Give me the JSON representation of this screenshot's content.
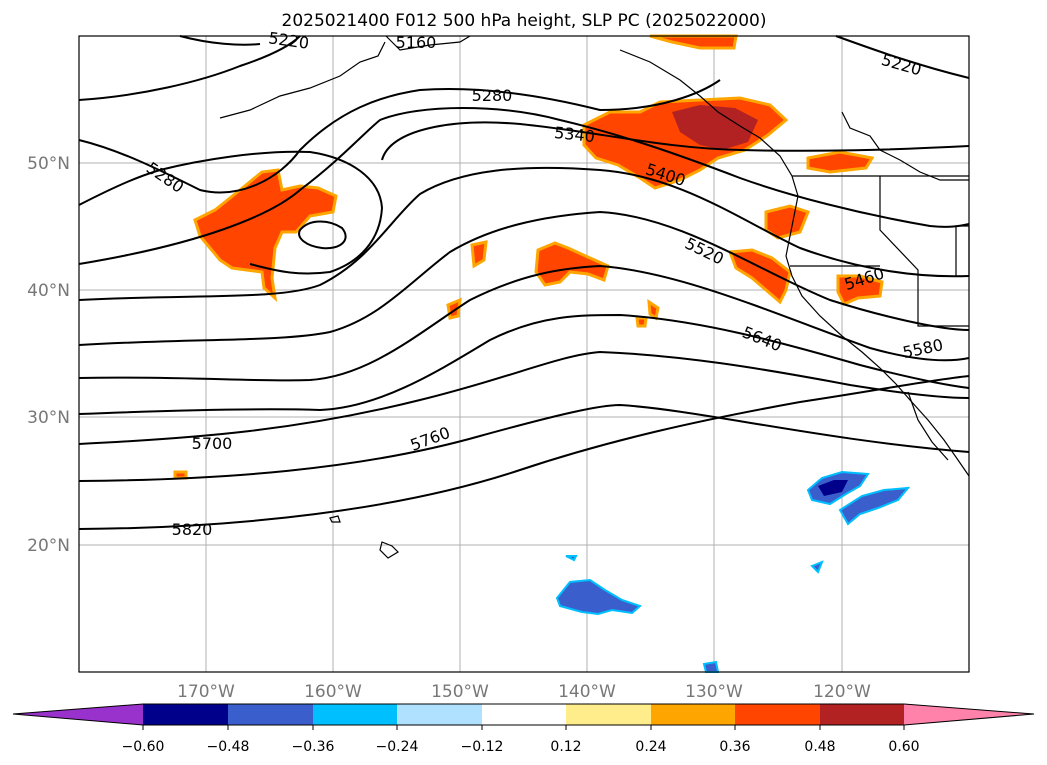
{
  "title": "2025021400 F012 500 hPa height, SLP PC (2025022000)",
  "lat_labels": [
    "50°N",
    "40°N",
    "30°N",
    "20°N"
  ],
  "lon_labels": [
    "170°W",
    "160°W",
    "150°W",
    "140°W",
    "130°W",
    "120°W"
  ],
  "contour_labels": [
    "5220",
    "5160",
    "5220",
    "5280",
    "5280",
    "5340",
    "5400",
    "5520",
    "5460",
    "5640",
    "5580",
    "5700",
    "5760",
    "5820"
  ],
  "colorbar": {
    "ticks": [
      "−0.60",
      "−0.48",
      "−0.36",
      "−0.24",
      "−0.12",
      "0.12",
      "0.24",
      "0.36",
      "0.48",
      "0.60"
    ],
    "colors": [
      "#9932cc",
      "#00008b",
      "#3a5fcd",
      "#00bfff",
      "#b0e2ff",
      "#ffffff",
      "#ffec8b",
      "#ffa500",
      "#ff4500",
      "#b22222",
      "#ff82ab"
    ]
  },
  "colors": {
    "contour": "#000000",
    "coast": "#000000",
    "grid": "#b0b0b0",
    "positive_strong": "#ff4500",
    "positive_max": "#b22222",
    "positive_edge": "#ffa500",
    "negative": "#3a5fcd",
    "negative_max": "#00008b",
    "negative_edge": "#00bfff"
  }
}
